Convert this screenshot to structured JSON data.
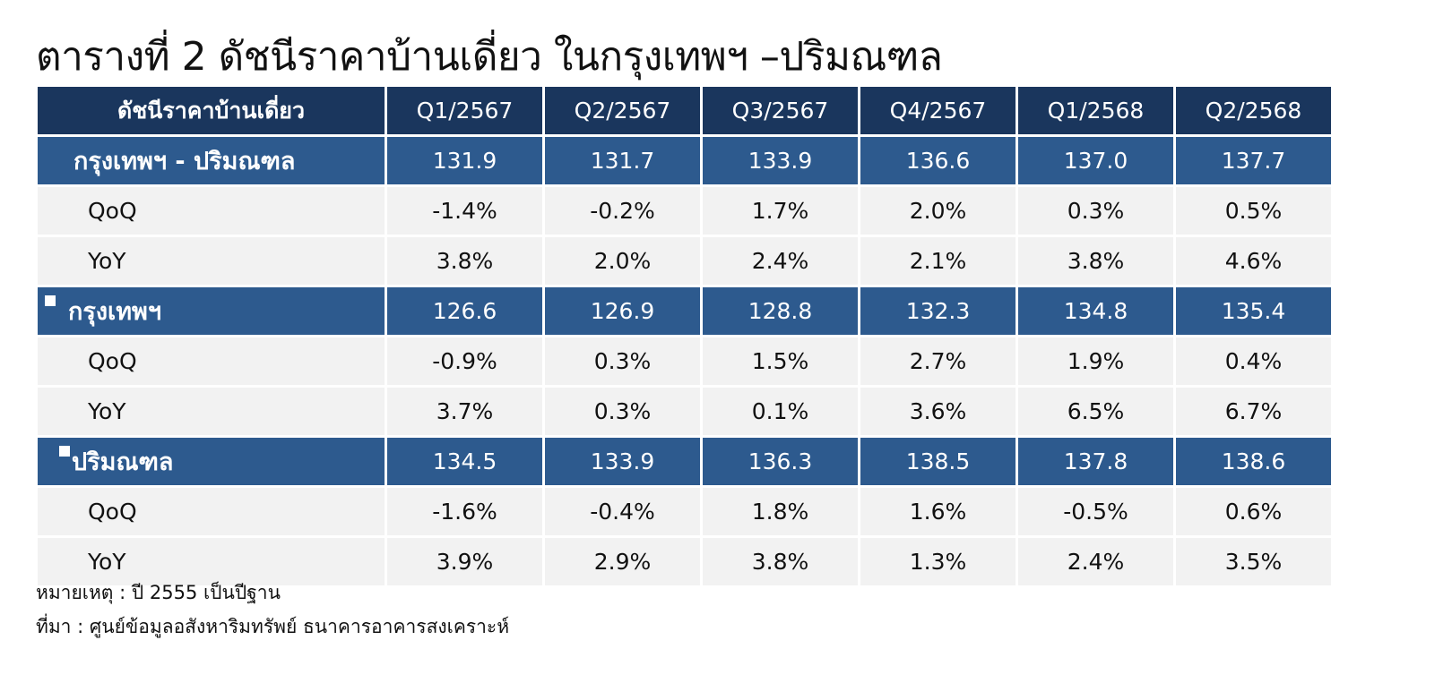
{
  "title": "ตารางที่ 2 ดัชนีราคาบ้านเดี่ยว ในกรุงเทพฯ –ปริมณฑล",
  "table": {
    "header_label": "ดัชนีราคาบ้านเดี่ยว",
    "quarters": [
      "Q1/2567",
      "Q2/2567",
      "Q3/2567",
      "Q4/2567",
      "Q1/2568",
      "Q2/2568"
    ],
    "groups": [
      {
        "label": "กรุงเทพฯ - ปริมณฑล",
        "values": [
          "131.9",
          "131.7",
          "133.9",
          "136.6",
          "137.0",
          "137.7"
        ],
        "qoq_label": "QoQ",
        "qoq": [
          "-1.4%",
          "-0.2%",
          "1.7%",
          "2.0%",
          "0.3%",
          "0.5%"
        ],
        "yoy_label": "YoY",
        "yoy": [
          "3.8%",
          "2.0%",
          "2.4%",
          "2.1%",
          "3.8%",
          "4.6%"
        ]
      },
      {
        "label": "กรุงเทพฯ",
        "values": [
          "126.6",
          "126.9",
          "128.8",
          "132.3",
          "134.8",
          "135.4"
        ],
        "qoq_label": "QoQ",
        "qoq": [
          "-0.9%",
          "0.3%",
          "1.5%",
          "2.7%",
          "1.9%",
          "0.4%"
        ],
        "yoy_label": "YoY",
        "yoy": [
          "3.7%",
          "0.3%",
          "0.1%",
          "3.6%",
          "6.5%",
          "6.7%"
        ]
      },
      {
        "label": "ปริมณฑล",
        "values": [
          "134.5",
          "133.9",
          "136.3",
          "138.5",
          "137.8",
          "138.6"
        ],
        "qoq_label": "QoQ",
        "qoq": [
          "-1.6%",
          "-0.4%",
          "1.8%",
          "1.6%",
          "-0.5%",
          "0.6%"
        ],
        "yoy_label": "YoY",
        "yoy": [
          "3.9%",
          "2.9%",
          "3.8%",
          "1.3%",
          "2.4%",
          "3.5%"
        ]
      }
    ]
  },
  "colors": {
    "header_bg": "#1a365d",
    "group_bg": "#2d5a8e",
    "sub_bg": "#f2f2f2",
    "negative_text": "#e11d1d"
  },
  "notes": {
    "note": "หมายเหตุ : ปี 2555 เป็นปีฐาน",
    "source": "ที่มา : ศูนย์ข้อมูลอสังหาริมทรัพย์ ธนาคารอาคารสงเคราะห์"
  }
}
